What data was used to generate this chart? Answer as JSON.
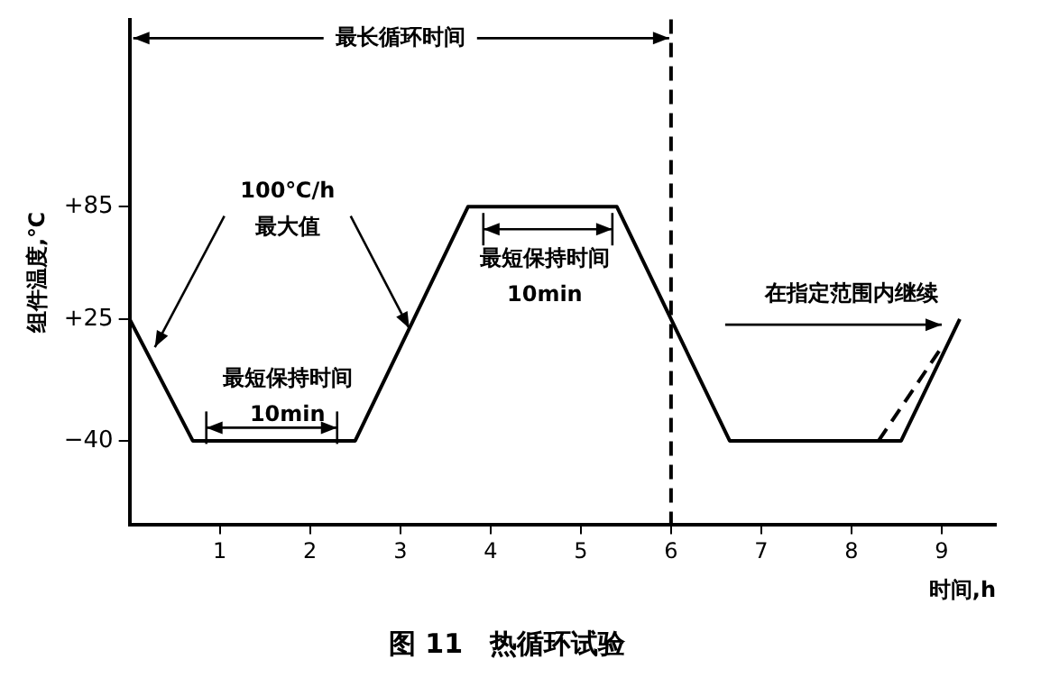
{
  "chart_data": {
    "type": "line",
    "title": "图 11　热循环试验",
    "xlabel": "时间,h",
    "ylabel": "组件温度,℃",
    "xlim": [
      0,
      9.6
    ],
    "xticks": [
      1,
      2,
      3,
      4,
      5,
      6,
      7,
      8,
      9
    ],
    "ylim": [
      -85,
      185
    ],
    "yticks": [
      {
        "value": -40,
        "label": "−40"
      },
      {
        "value": 25,
        "label": "+25"
      },
      {
        "value": 85,
        "label": "+85"
      }
    ],
    "series": [
      {
        "color": "#000000",
        "line_style": "solid",
        "x": [
          0,
          0.7,
          2.5,
          3.75,
          5.4,
          6.65,
          8.55,
          9.2
        ],
        "values": [
          25,
          -40,
          -40,
          85,
          85,
          -40,
          -40,
          25
        ]
      },
      {
        "color": "#000000",
        "line_style": "dashed",
        "x": [
          8.3,
          9.0
        ],
        "values": [
          -40,
          10
        ]
      }
    ],
    "ref_lines": [
      {
        "axis": "x",
        "value": 6,
        "color": "#000000",
        "line_style": "dashed"
      }
    ],
    "annotations": [
      {
        "text": "最长循环时间",
        "x": 6,
        "y": 175
      },
      {
        "text": "100℃/h\n最大值",
        "x": 3.1,
        "y": 20
      },
      "最短保持时间\n10min",
      "最短保持时间\n10min",
      "在指定范围内继续"
    ],
    "grid": false,
    "legend": false,
    "marker": "none"
  }
}
